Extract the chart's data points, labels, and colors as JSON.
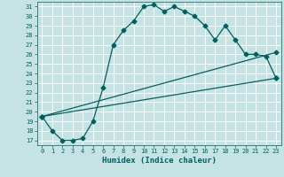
{
  "xlabel": "Humidex (Indice chaleur)",
  "xlim": [
    -0.5,
    23.5
  ],
  "ylim": [
    16.5,
    31.5
  ],
  "yticks": [
    17,
    18,
    19,
    20,
    21,
    22,
    23,
    24,
    25,
    26,
    27,
    28,
    29,
    30,
    31
  ],
  "xticks": [
    0,
    1,
    2,
    3,
    4,
    5,
    6,
    7,
    8,
    9,
    10,
    11,
    12,
    13,
    14,
    15,
    16,
    17,
    18,
    19,
    20,
    21,
    22,
    23
  ],
  "bg_color": "#c5e3e3",
  "line_color": "#006060",
  "grid_color": "#ffffff",
  "line1_x": [
    0,
    1,
    2,
    3,
    4,
    5,
    6,
    7,
    8,
    9,
    10,
    11,
    12,
    13,
    14,
    15,
    16,
    17,
    18,
    19,
    20,
    21,
    22,
    23
  ],
  "line1_y": [
    19.5,
    18.0,
    17.0,
    17.0,
    17.2,
    19.0,
    22.5,
    27.0,
    28.5,
    29.5,
    31.0,
    31.2,
    30.5,
    31.0,
    30.5,
    30.0,
    29.0,
    27.5,
    29.0,
    27.5,
    26.0,
    26.0,
    25.8,
    23.5
  ],
  "line2_x": [
    0,
    23
  ],
  "line2_y": [
    19.5,
    26.2
  ],
  "line3_x": [
    0,
    23
  ],
  "line3_y": [
    19.5,
    23.5
  ],
  "marker": "D",
  "markersize": 2.5,
  "xlabel_fontsize": 6.5,
  "tick_fontsize": 5.0
}
